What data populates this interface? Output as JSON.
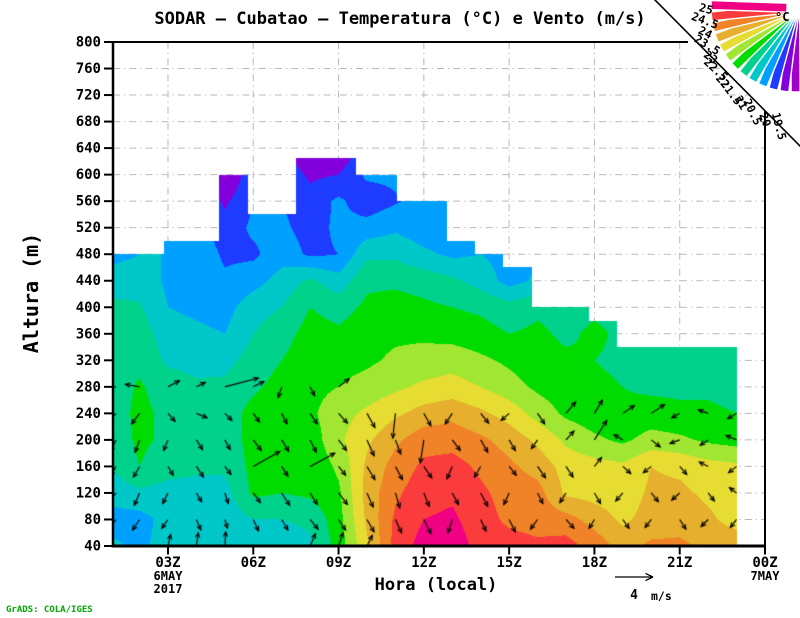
{
  "header": {
    "title": "SODAR — Cubatao — Temperatura (°C) e Vento (m/s)"
  },
  "watermark": "GrADS: COLA/IGES",
  "axes": {
    "x_label": "Hora (local)",
    "y_label": "Altura (m)",
    "x_ticks": [
      {
        "label": "03Z",
        "hour": 3,
        "sub": [
          "6MAY",
          "2017"
        ]
      },
      {
        "label": "06Z",
        "hour": 6,
        "sub": []
      },
      {
        "label": "09Z",
        "hour": 9,
        "sub": []
      },
      {
        "label": "12Z",
        "hour": 12,
        "sub": []
      },
      {
        "label": "15Z",
        "hour": 15,
        "sub": []
      },
      {
        "label": "18Z",
        "hour": 18,
        "sub": []
      },
      {
        "label": "21Z",
        "hour": 21,
        "sub": []
      },
      {
        "label": "00Z",
        "hour": 24,
        "sub": [
          "7MAY"
        ]
      }
    ],
    "y_ticks": [
      800,
      760,
      720,
      680,
      640,
      600,
      560,
      520,
      480,
      440,
      400,
      360,
      320,
      280,
      240,
      200,
      160,
      120,
      80,
      40
    ]
  },
  "legend": {
    "unit": "°C",
    "levels": [
      "25",
      "24.5",
      "24",
      "23.5",
      "23",
      "22.5",
      "22",
      "21.5",
      "21",
      "20.5",
      "20",
      "19.5"
    ]
  },
  "ref_arrow": {
    "value": "4",
    "unit": "m/s"
  },
  "colors": {
    "grid": "#b9b9b9",
    "frame": "#000000",
    "watermark": "#00a800"
  },
  "chart_data": {
    "type": "heatmap",
    "title": "SODAR — Cubatao — Temperatura (°C) e Vento (m/s)",
    "xlabel": "Hora (local)",
    "ylabel": "Altura (m)",
    "x_hours": [
      1,
      2,
      3,
      4,
      5,
      6,
      7,
      8,
      9,
      10,
      11,
      12,
      13,
      14,
      15,
      16,
      17,
      18,
      19,
      20,
      21,
      22,
      23
    ],
    "altitudes": [
      40,
      80,
      120,
      160,
      200,
      240,
      280,
      320,
      360,
      400,
      440,
      480,
      520,
      560,
      600,
      640
    ],
    "temp_levels": [
      19.5,
      20,
      20.5,
      21,
      21.5,
      22,
      22.5,
      23,
      23.5,
      24,
      24.5,
      25
    ],
    "band_colors": [
      "#a000c8",
      "#8200dc",
      "#1e3cff",
      "#00a0ff",
      "#00c8c8",
      "#00d28c",
      "#00dc00",
      "#a0e632",
      "#e6dc32",
      "#e6af2d",
      "#f08228",
      "#fa3c3c",
      "#f00082"
    ],
    "temperature": [
      [
        21.1,
        20.9,
        21.2,
        21.2,
        21.2,
        21.2,
        21.2,
        21.4,
        22.2,
        23.4,
        24.7,
        25.2,
        25.3,
        24.8,
        24.7,
        24.6,
        24.7,
        24.3,
        23.8,
        24.1,
        24.1,
        23.9,
        23.8
      ],
      [
        20.8,
        20.8,
        21.2,
        21.2,
        21.2,
        21.5,
        21.5,
        21.6,
        22.3,
        23.6,
        24.6,
        25.0,
        25.1,
        24.7,
        24.4,
        24.3,
        24.2,
        23.8,
        23.4,
        23.7,
        23.8,
        23.6,
        23.3
      ],
      [
        21.2,
        21.4,
        21.3,
        21.3,
        21.3,
        22.1,
        22.0,
        22.1,
        22.4,
        23.7,
        24.4,
        24.8,
        24.9,
        24.6,
        24.3,
        24.2,
        23.4,
        23.3,
        23.2,
        23.6,
        23.6,
        23.4,
        23.2
      ],
      [
        21.5,
        22.0,
        21.7,
        21.6,
        21.6,
        22.15,
        22.2,
        22.1,
        22.6,
        23.6,
        24.2,
        24.6,
        24.7,
        24.4,
        24.1,
        23.8,
        23.3,
        23.2,
        23.1,
        23.5,
        23.4,
        23.2,
        23.1
      ],
      [
        21.7,
        22.1,
        21.9,
        21.7,
        21.7,
        22.2,
        22.3,
        22.2,
        22.9,
        23.4,
        23.9,
        24.3,
        24.3,
        24.1,
        23.8,
        23.4,
        22.9,
        22.6,
        22.4,
        22.7,
        22.6,
        22.4,
        22.3
      ],
      [
        21.8,
        22.1,
        21.9,
        21.7,
        21.7,
        22.2,
        22.3,
        22.4,
        22.8,
        23.1,
        23.4,
        23.7,
        23.85,
        23.6,
        23.3,
        22.8,
        22.4,
        22.2,
        22.1,
        22.2,
        22.1,
        22.1,
        22.0
      ],
      [
        21.8,
        22.05,
        21.8,
        21.6,
        21.6,
        21.9,
        22.2,
        22.35,
        22.5,
        22.7,
        22.9,
        23.1,
        23.2,
        23.0,
        22.7,
        22.4,
        22.2,
        22.1,
        22.0,
        21.9,
        21.9,
        21.9,
        21.8
      ],
      [
        21.8,
        21.9,
        21.4,
        21.3,
        21.35,
        21.7,
        22.0,
        22.3,
        22.3,
        22.4,
        22.6,
        22.7,
        22.8,
        22.6,
        22.4,
        22.2,
        22.1,
        22.0,
        21.9,
        21.8,
        21.8,
        21.8,
        21.8
      ],
      [
        21.7,
        21.8,
        21.2,
        21.1,
        21.0,
        21.5,
        21.8,
        22.2,
        22.1,
        22.3,
        22.4,
        22.4,
        22.3,
        22.2,
        22.0,
        22.1,
        21.9,
        22.1,
        21.9,
        21.8,
        21.8,
        21.8,
        21.8
      ],
      [
        21.6,
        21.55,
        21.0,
        20.9,
        20.8,
        21.3,
        21.5,
        22.0,
        21.8,
        22.1,
        22.2,
        22.1,
        22.0,
        21.9,
        21.7,
        21.9,
        21.8,
        21.9,
        21.8,
        21.8,
        21.8,
        21.8,
        21.8
      ],
      [
        21.3,
        21.3,
        20.9,
        20.8,
        20.6,
        20.8,
        21.2,
        21.6,
        21.2,
        21.9,
        21.9,
        21.8,
        21.6,
        21.3,
        20.8,
        21.1,
        21.1,
        21.1,
        21.1,
        21.1,
        21.1,
        21.1,
        21.1
      ],
      [
        20.8,
        21.0,
        21.0,
        20.9,
        20.4,
        20.4,
        20.8,
        20.4,
        20.5,
        21.4,
        21.4,
        21.1,
        20.9,
        21.0,
        20.8,
        20.9,
        20.9,
        20.9,
        20.9,
        20.9,
        20.9,
        20.9,
        20.9
      ],
      [
        20.7,
        20.9,
        20.8,
        20.7,
        20.2,
        20.6,
        20.6,
        20.3,
        20.6,
        20.7,
        20.9,
        20.7,
        20.8,
        20.9,
        20.8,
        20.8,
        20.8,
        20.8,
        20.8,
        20.8,
        20.8,
        20.8,
        20.8
      ],
      [
        20.6,
        20.8,
        20.7,
        20.6,
        19.9,
        20.5,
        20.5,
        20.2,
        20.6,
        20.2,
        20.45,
        20.7,
        20.7,
        20.8,
        20.7,
        20.7,
        20.7,
        20.7,
        20.7,
        20.7,
        20.7,
        20.7,
        20.7
      ],
      [
        20.5,
        20.7,
        20.6,
        20.5,
        19.4,
        20.4,
        20.4,
        19.9,
        20.0,
        20.6,
        20.6,
        20.6,
        20.6,
        20.7,
        20.6,
        20.6,
        20.6,
        20.6,
        20.6,
        20.6,
        20.6,
        20.6,
        20.6
      ],
      [
        20.4,
        20.6,
        20.5,
        20.4,
        19.3,
        20.3,
        20.3,
        19.3,
        19.5,
        20.3,
        20.3,
        20.5,
        20.5,
        20.6,
        20.5,
        20.5,
        20.5,
        20.5,
        20.5,
        20.5,
        20.5,
        20.5,
        20.5
      ]
    ],
    "data_top_steps": [
      [
        1.0,
        2.86,
        480
      ],
      [
        2.86,
        4.8,
        500
      ],
      [
        4.8,
        5.8,
        600
      ],
      [
        5.8,
        7.5,
        540
      ],
      [
        7.5,
        9.6,
        625
      ],
      [
        9.6,
        11.05,
        600
      ],
      [
        11.05,
        12.8,
        560
      ],
      [
        12.8,
        13.8,
        500
      ],
      [
        13.8,
        14.8,
        480
      ],
      [
        14.8,
        15.8,
        460
      ],
      [
        15.8,
        17.8,
        400
      ],
      [
        17.8,
        18.8,
        380
      ],
      [
        18.8,
        23.0,
        340
      ]
    ],
    "wind": {
      "units": "m/s",
      "reference": 4,
      "rows": [
        {
          "alt": 280,
          "uv": [
            [
              -1.4,
              -0.2
            ],
            [
              -1.6,
              0.3
            ],
            [
              1.3,
              0.7
            ],
            [
              1.0,
              0.5
            ],
            [
              3.8,
              1.0
            ],
            [
              1.2,
              0.6
            ],
            [
              -0.4,
              -1.2
            ],
            [
              0.5,
              -1.0
            ],
            [
              1.2,
              0.9
            ],
            null,
            null,
            null,
            null,
            null,
            null,
            null,
            null,
            null,
            null,
            null,
            null,
            null,
            null
          ]
        },
        {
          "alt": 240,
          "uv": [
            [
              -1.0,
              -1.0
            ],
            [
              -0.9,
              -1.2
            ],
            [
              0.8,
              -0.9
            ],
            [
              1.2,
              -0.5
            ],
            [
              0.8,
              -0.8
            ],
            [
              0.7,
              -1.0
            ],
            [
              0.6,
              -1.2
            ],
            [
              0.8,
              -1.2
            ],
            [
              1.0,
              -1.1
            ],
            [
              0.9,
              -1.6
            ],
            [
              -0.3,
              -2.8
            ],
            [
              0.8,
              -1.4
            ],
            [
              -0.8,
              -1.2
            ],
            [
              0.9,
              -1.1
            ],
            [
              -0.9,
              -0.8
            ],
            [
              0.8,
              -1.2
            ],
            [
              1.1,
              1.3
            ],
            [
              0.9,
              1.5
            ],
            [
              1.3,
              0.9
            ],
            [
              1.5,
              1.0
            ],
            [
              -0.9,
              -0.5
            ],
            [
              -1.1,
              0.4
            ],
            [
              -1.0,
              -0.6
            ]
          ]
        },
        {
          "alt": 200,
          "uv": [
            [
              -0.6,
              -1.3
            ],
            [
              -0.5,
              -1.4
            ],
            [
              -0.5,
              -1.2
            ],
            [
              0.7,
              -1.1
            ],
            [
              0.6,
              -1.1
            ],
            [
              0.9,
              -1.2
            ],
            [
              0.8,
              -1.3
            ],
            [
              0.7,
              -1.4
            ],
            [
              0.9,
              -1.2
            ],
            [
              0.8,
              -1.8
            ],
            [
              0.6,
              -1.6
            ],
            [
              -0.4,
              -2.6
            ],
            [
              0.9,
              -1.2
            ],
            [
              0.8,
              -1.4
            ],
            [
              0.7,
              -1.2
            ],
            [
              -0.7,
              -1.0
            ],
            [
              0.9,
              1.0
            ],
            [
              1.4,
              2.2
            ],
            [
              -1.0,
              0.6
            ],
            [
              1.0,
              -0.8
            ],
            [
              -1.1,
              -0.4
            ],
            [
              -0.9,
              -0.6
            ],
            [
              -1.2,
              0.5
            ]
          ]
        },
        {
          "alt": 160,
          "uv": [
            [
              -0.6,
              -1.1
            ],
            [
              -0.7,
              -1.2
            ],
            [
              0.6,
              -1.0
            ],
            [
              0.8,
              -1.2
            ],
            [
              0.7,
              -0.9
            ],
            [
              3.0,
              1.7
            ],
            [
              0.7,
              -1.1
            ],
            [
              2.8,
              1.5
            ],
            [
              0.8,
              -1.0
            ],
            [
              0.9,
              -1.5
            ],
            [
              0.8,
              -1.5
            ],
            [
              0.9,
              -1.3
            ],
            [
              -0.6,
              -1.4
            ],
            [
              -0.7,
              -1.2
            ],
            [
              0.8,
              -1.0
            ],
            [
              0.9,
              -1.3
            ],
            [
              0.8,
              -1.2
            ],
            [
              0.8,
              1.0
            ],
            [
              0.9,
              -0.8
            ],
            [
              -0.9,
              -0.7
            ],
            [
              0.8,
              -0.9
            ],
            [
              -1.0,
              0.5
            ],
            [
              -0.9,
              -0.7
            ]
          ]
        },
        {
          "alt": 120,
          "uv": [
            [
              -0.8,
              -1.0
            ],
            [
              -0.6,
              -1.4
            ],
            [
              -0.6,
              -1.2
            ],
            [
              0.6,
              -1.0
            ],
            [
              0.4,
              -1.2
            ],
            [
              0.8,
              -1.1
            ],
            [
              0.9,
              -1.4
            ],
            [
              0.8,
              -1.3
            ],
            [
              1.0,
              -1.3
            ],
            [
              0.7,
              -1.6
            ],
            [
              0.5,
              -1.7
            ],
            [
              0.6,
              -1.5
            ],
            [
              0.7,
              -1.3
            ],
            [
              0.8,
              -1.5
            ],
            [
              -0.6,
              -1.3
            ],
            [
              0.6,
              -1.2
            ],
            [
              -0.7,
              -1.1
            ],
            [
              0.7,
              -1.2
            ],
            [
              -0.8,
              -0.9
            ],
            [
              0.8,
              -1.0
            ],
            [
              -0.9,
              -0.8
            ],
            [
              0.7,
              -0.9
            ],
            [
              -0.8,
              0.6
            ]
          ]
        },
        {
          "alt": 80,
          "uv": [
            [
              -0.9,
              -1.3
            ],
            [
              -0.8,
              -1.2
            ],
            [
              -0.7,
              -1.0
            ],
            [
              0.5,
              -1.2
            ],
            [
              0.3,
              -1.0
            ],
            [
              0.6,
              -1.3
            ],
            [
              0.7,
              -1.2
            ],
            [
              0.9,
              -1.1
            ],
            [
              0.8,
              -1.2
            ],
            [
              0.8,
              -1.4
            ],
            [
              0.7,
              -1.5
            ],
            [
              0.8,
              -1.6
            ],
            [
              -0.5,
              -1.5
            ],
            [
              0.6,
              -1.3
            ],
            [
              0.7,
              -1.4
            ],
            [
              -0.8,
              -1.1
            ],
            [
              0.9,
              -1.0
            ],
            [
              -0.6,
              -1.0
            ],
            [
              0.7,
              -1.0
            ],
            [
              -0.7,
              -0.9
            ],
            [
              0.7,
              -1.1
            ],
            [
              -0.8,
              -0.8
            ],
            [
              -0.7,
              -0.9
            ]
          ]
        },
        {
          "alt": 40,
          "uv": [
            [
              -0.3,
              -1.2
            ],
            [
              -0.4,
              -1.5
            ],
            [
              0.3,
              1.3
            ],
            [
              0.2,
              1.5
            ],
            [
              0.1,
              1.6
            ],
            [
              0.4,
              -1.1
            ],
            [
              0.5,
              -1.0
            ],
            [
              0.6,
              1.4
            ],
            [
              0.5,
              1.5
            ],
            [
              0.6,
              1.2
            ],
            [
              0.4,
              -1.3
            ],
            [
              0.5,
              -1.4
            ],
            [
              0.6,
              -1.2
            ],
            [
              0.4,
              -1.1
            ],
            [
              0.5,
              -1.2
            ],
            [
              0.5,
              -1.3
            ],
            [
              0.6,
              -1.2
            ],
            [
              0.5,
              -1.1
            ],
            [
              -0.6,
              -1.1
            ],
            [
              0.6,
              -1.0
            ],
            [
              -0.5,
              -1.0
            ],
            [
              0.5,
              -1.0
            ],
            [
              -0.6,
              -1.0
            ]
          ]
        }
      ]
    },
    "x_range": [
      1.066,
      24
    ],
    "y_range": [
      40,
      800
    ],
    "grid": true,
    "legend_position": "top-right-fan"
  }
}
